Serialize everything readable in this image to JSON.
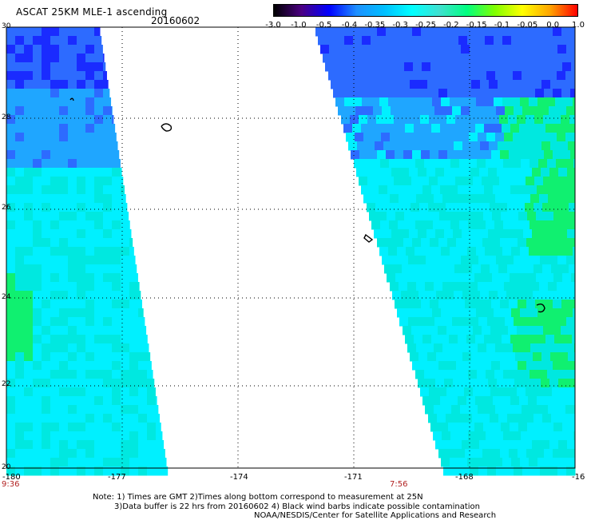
{
  "header": {
    "title": "ASCAT 25KM MLE-1 ascending",
    "date": "20160602"
  },
  "colorbar": {
    "labels": [
      "-3.0",
      "-1.0",
      "-0.5",
      "-0.4",
      "-0.35",
      "-0.3",
      "-0.25",
      "-0.2",
      "-0.15",
      "-0.1",
      "-0.05",
      "0.0",
      "1.0"
    ],
    "colors": [
      "#000000",
      "#4b0082",
      "#0000ff",
      "#1e90ff",
      "#00bfff",
      "#00ffff",
      "#40e0d0",
      "#00ff7f",
      "#7fff00",
      "#ffff00",
      "#ffa500",
      "#ff0000"
    ]
  },
  "map": {
    "lon_labels": [
      "-180",
      "-177",
      "-174",
      "-171",
      "-168",
      "-16"
    ],
    "lat_labels": [
      "30",
      "28",
      "26",
      "24",
      "22",
      "20"
    ],
    "lon_range": [
      -180,
      -165
    ],
    "lat_range": [
      20,
      30
    ],
    "grid": true,
    "swath_colors": {
      "deep_blue": "#1a2bff",
      "blue": "#2d6bff",
      "light_blue": "#1fa6ff",
      "cyan": "#00f0ff",
      "aqua": "#00e8e0",
      "green": "#10f070"
    }
  },
  "times": {
    "left": "9:36",
    "mid": "7:56"
  },
  "notes": {
    "line1": "Note: 1) Times are GMT 2)Times along bottom correspond to measurement at 25N",
    "line2": "3)Data buffer is 22 hrs from 20160602 4) Black wind barbs indicate possible contamination",
    "line3": "NOAA/NESDIS/Center for Satellite Applications and Research"
  }
}
